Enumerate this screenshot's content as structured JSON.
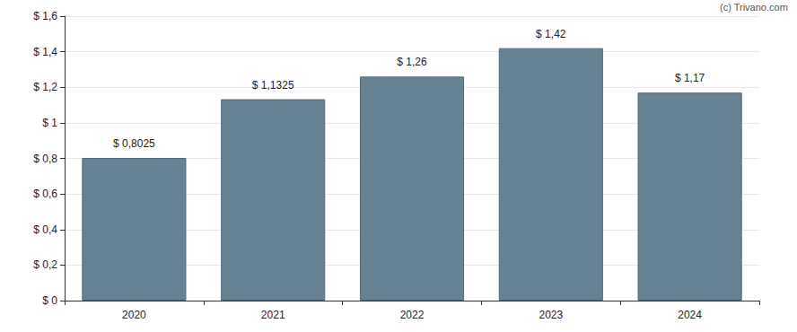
{
  "chart_data": {
    "type": "bar",
    "categories": [
      "2020",
      "2021",
      "2022",
      "2023",
      "2024"
    ],
    "values": [
      0.8025,
      1.1325,
      1.26,
      1.42,
      1.17
    ],
    "value_labels": [
      "$ 0,8025",
      "$ 1,1325",
      "$ 1,26",
      "$ 1,42",
      "$ 1,17"
    ],
    "data_labels": true,
    "color": "#678292",
    "ylim": [
      0,
      1.6
    ],
    "yticks": [
      {
        "value": 0,
        "label": "$ 0"
      },
      {
        "value": 0.2,
        "label": "$ 0,2"
      },
      {
        "value": 0.4,
        "label": "$ 0,4"
      },
      {
        "value": 0.6,
        "label": "$ 0,6"
      },
      {
        "value": 0.8,
        "label": "$ 0,8"
      },
      {
        "value": 1,
        "label": "$ 1"
      },
      {
        "value": 1.2,
        "label": "$ 1,2"
      },
      {
        "value": 1.4,
        "label": "$ 1,4"
      },
      {
        "value": 1.6,
        "label": "$ 1,6"
      }
    ],
    "grid": true,
    "annotations": [
      "(c) Trivano.com"
    ]
  }
}
